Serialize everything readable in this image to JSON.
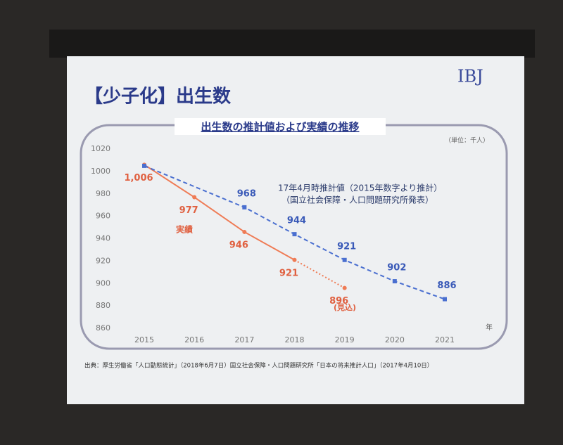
{
  "logo": "IBJ",
  "slide_title": "【少子化】出生数",
  "source": "出典：厚生労働省「人口動態統計」（2018年6月7日）国立社会保障・人口問題研究所「日本の将来推計人口」（2017年4月10日）",
  "chart_data": {
    "type": "line",
    "title": "出生数の推計値および実績の推移",
    "unit_label": "（単位：千人）",
    "x_label": "年",
    "annotations": [
      "実績",
      "17年4月時推計値（2015年数字より推計）",
      "（国立社会保障・人口問題研究所発表）",
      "(見込)"
    ],
    "xlim": [
      2015,
      2021
    ],
    "xticks": [
      2015,
      2016,
      2017,
      2018,
      2019,
      2020,
      2021
    ],
    "ylim": [
      860,
      1020
    ],
    "yticks": [
      860,
      880,
      900,
      920,
      940,
      960,
      980,
      1000,
      1020
    ],
    "series": [
      {
        "name": "実績",
        "color": "#ef7b55",
        "x": [
          2015,
          2016,
          2017,
          2018,
          2019
        ],
        "values": [
          1006,
          977,
          946,
          921,
          896
        ],
        "value_labels": [
          "1,006",
          "977",
          "946",
          "921",
          "896"
        ],
        "estimate_from_index": 3
      },
      {
        "name": "推計値",
        "color": "#4a6fd0",
        "x": [
          2015,
          2017,
          2018,
          2019,
          2020,
          2021
        ],
        "values": [
          1005,
          968,
          944,
          921,
          902,
          886
        ],
        "value_labels": [
          null,
          "968",
          "944",
          "921",
          "902",
          "886"
        ]
      }
    ]
  }
}
